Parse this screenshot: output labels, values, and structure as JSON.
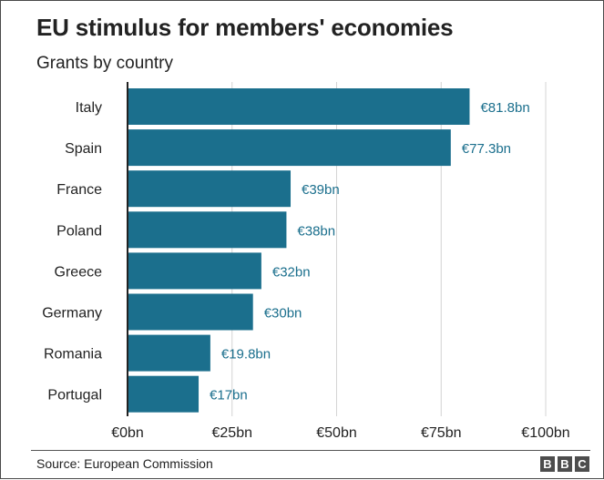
{
  "header": {
    "title": "EU stimulus for members' economies",
    "subtitle": "Grants by country"
  },
  "footer": {
    "source": "Source: European Commission",
    "logo_letters": [
      "B",
      "B",
      "C"
    ]
  },
  "colors": {
    "bar": "#1b6f8d",
    "value_label": "#1b6f8d",
    "grid": "#d4d4d4",
    "axis": "#222222",
    "text": "#222222"
  },
  "chart_data": {
    "type": "bar",
    "orientation": "horizontal",
    "title": "EU stimulus for members' economies",
    "subtitle": "Grants by country",
    "xlabel": "",
    "ylabel": "",
    "xlim": [
      0,
      100
    ],
    "grid": true,
    "categories": [
      "Italy",
      "Spain",
      "France",
      "Poland",
      "Greece",
      "Germany",
      "Romania",
      "Portugal"
    ],
    "values": [
      81.8,
      77.3,
      39,
      38,
      32,
      30,
      19.8,
      17
    ],
    "value_labels": [
      "€81.8bn",
      "€77.3bn",
      "€39bn",
      "€38bn",
      "€32bn",
      "€30bn",
      "€19.8bn",
      "€17bn"
    ],
    "ticks": [
      0,
      25,
      50,
      75,
      100
    ],
    "tick_labels": [
      "€0bn",
      "€25bn",
      "€50bn",
      "€75bn",
      "€100bn"
    ],
    "unit": "€bn"
  }
}
